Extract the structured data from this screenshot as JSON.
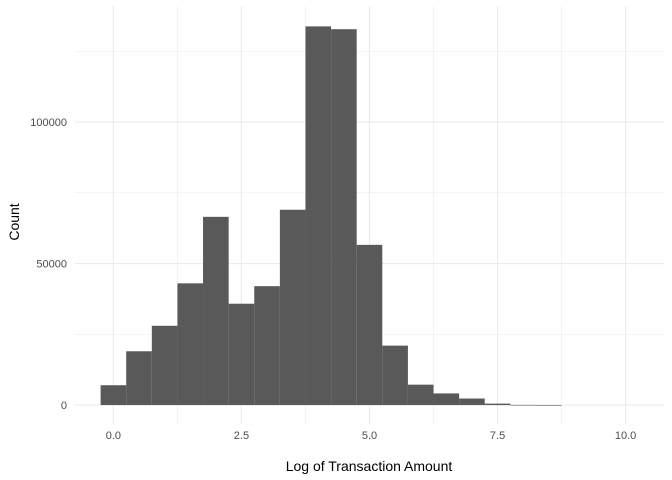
{
  "chart_data": {
    "type": "bar",
    "title": "",
    "xlabel": "Log of Transaction Amount",
    "ylabel": "Count",
    "xlim": [
      -0.75,
      10.75
    ],
    "ylim": [
      -6700,
      141000
    ],
    "x_ticks": [
      {
        "value": 0,
        "label": "0.0"
      },
      {
        "value": 2.5,
        "label": "2.5"
      },
      {
        "value": 5,
        "label": "5.0"
      },
      {
        "value": 7.5,
        "label": "7.5"
      },
      {
        "value": 10,
        "label": "10.0"
      }
    ],
    "y_ticks": [
      {
        "value": 0,
        "label": "0"
      },
      {
        "value": 50000,
        "label": "50000"
      },
      {
        "value": 100000,
        "label": "100000"
      }
    ],
    "grid": true,
    "bar_color": "#595959",
    "grid_color": "#ebebeb",
    "bins": [
      {
        "x0": -0.25,
        "x1": 0.25,
        "count": 7000
      },
      {
        "x0": 0.25,
        "x1": 0.75,
        "count": 19000
      },
      {
        "x0": 0.75,
        "x1": 1.25,
        "count": 28000
      },
      {
        "x0": 1.25,
        "x1": 1.75,
        "count": 43000
      },
      {
        "x0": 1.75,
        "x1": 2.25,
        "count": 66500
      },
      {
        "x0": 2.25,
        "x1": 2.75,
        "count": 35800
      },
      {
        "x0": 2.75,
        "x1": 3.25,
        "count": 42000
      },
      {
        "x0": 3.25,
        "x1": 3.75,
        "count": 69000
      },
      {
        "x0": 3.75,
        "x1": 4.25,
        "count": 133800
      },
      {
        "x0": 4.25,
        "x1": 4.75,
        "count": 132800
      },
      {
        "x0": 4.75,
        "x1": 5.25,
        "count": 56600
      },
      {
        "x0": 5.25,
        "x1": 5.75,
        "count": 21000
      },
      {
        "x0": 5.75,
        "x1": 6.25,
        "count": 7200
      },
      {
        "x0": 6.25,
        "x1": 6.75,
        "count": 4100
      },
      {
        "x0": 6.75,
        "x1": 7.25,
        "count": 2300
      },
      {
        "x0": 7.25,
        "x1": 7.75,
        "count": 500
      },
      {
        "x0": 7.75,
        "x1": 8.25,
        "count": 50
      },
      {
        "x0": 8.25,
        "x1": 8.75,
        "count": 10
      }
    ]
  }
}
